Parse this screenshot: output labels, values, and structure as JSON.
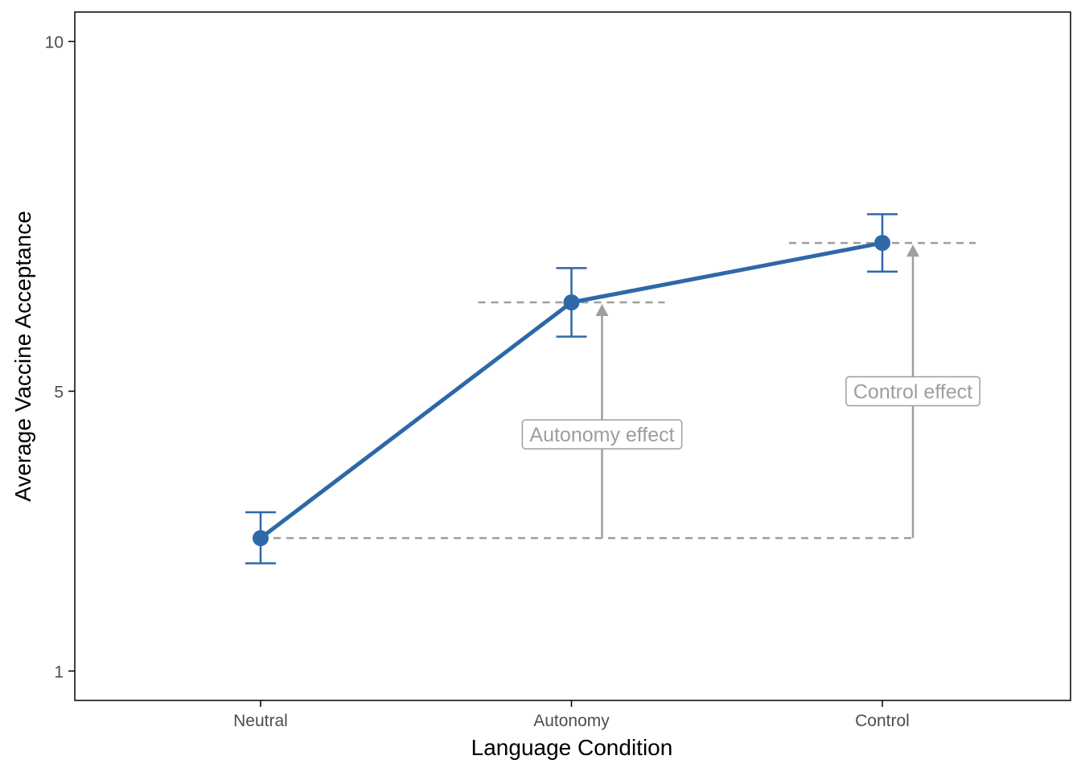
{
  "chart_data": {
    "type": "line",
    "title": "",
    "xlabel": "Language Condition",
    "ylabel": "Average Vaccine Acceptance",
    "categories": [
      "Neutral",
      "Autonomy",
      "Control"
    ],
    "ylim": [
      0.58,
      10.42
    ],
    "yticks": [
      1,
      5,
      10
    ],
    "grid": false,
    "legend": "none",
    "series": [
      {
        "values": [
          2.9,
          6.27,
          7.12
        ],
        "error_low": [
          2.54,
          5.78,
          6.71
        ],
        "error_high": [
          3.27,
          6.76,
          7.53
        ]
      }
    ],
    "reference_lines": [
      {
        "value": 2.9,
        "from_category": "Neutral",
        "to_category": "Control"
      },
      {
        "value": 6.27,
        "around_category": "Autonomy"
      },
      {
        "value": 7.12,
        "around_category": "Control"
      }
    ],
    "annotations": [
      {
        "text": "Autonomy effect",
        "category": "Autonomy",
        "from": 2.9,
        "to": 6.27
      },
      {
        "text": "Control effect",
        "category": "Control",
        "from": 2.9,
        "to": 7.12
      }
    ],
    "colors": {
      "series": "#2e68a8",
      "annotation": "#9e9e9e",
      "axis": "#000000",
      "tick_text": "#4d4d4d"
    }
  }
}
